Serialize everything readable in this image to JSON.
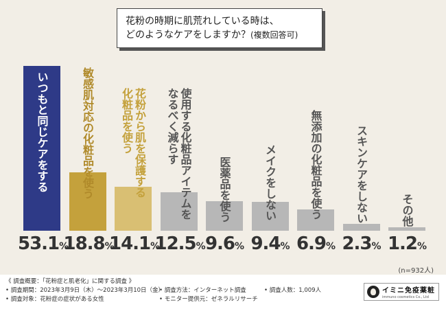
{
  "question": {
    "line1": "花粉の時期に肌荒れしている時は、",
    "line2": "どのようなケアをしますか？",
    "line2_small": "(複数回答可)"
  },
  "sample_note": "(n=932人)",
  "chart_data": {
    "type": "bar",
    "title": "花粉の時期に肌荒れしている時は、どのようなケアをしますか？(複数回答可)",
    "categories": [
      "いつもと同じケアをする",
      "敏感肌対応の化粧品を使う",
      "花粉から肌を保護する化粧品を使う",
      "使用する化粧品アイテムをなるべく減らす",
      "医薬品を使う",
      "メイクをしない",
      "無添加の化粧品を使う",
      "スキンケアをしない",
      "その他"
    ],
    "label_lines": [
      [
        "いつもと同じケアをする"
      ],
      [
        "敏感肌対応の化粧品を使う"
      ],
      [
        "花粉から肌を保護する",
        "化粧品を使う"
      ],
      [
        "使用する化粧品アイテムを",
        "なるべく減らす"
      ],
      [
        "医薬品を使う"
      ],
      [
        "メイクをしない"
      ],
      [
        "無添加の化粧品を使う"
      ],
      [
        "スキンケアをしない"
      ],
      [
        "その他"
      ]
    ],
    "values": [
      53.1,
      18.8,
      14.1,
      12.5,
      9.6,
      9.4,
      6.9,
      2.3,
      1.2
    ],
    "value_labels": [
      "53.1",
      "18.8",
      "14.1",
      "12.5",
      "9.6",
      "9.4",
      "6.9",
      "2.3",
      "1.2"
    ],
    "unit": "%",
    "colors": [
      "#2e3a87",
      "#c4a13c",
      "#d9bf73",
      "#b7b7b7",
      "#b7b7b7",
      "#b7b7b7",
      "#b7b7b7",
      "#b7b7b7",
      "#b7b7b7"
    ],
    "label_colors": [
      "#ffffff",
      "#b08a2a",
      "#c4a13c",
      "#555555",
      "#555555",
      "#555555",
      "#555555",
      "#555555",
      "#555555"
    ],
    "ylim": [
      0,
      53.1
    ]
  },
  "footer": {
    "header": "《 調査概要：「花粉症と肌老化」に関する調査 》",
    "period": "• 調査期間：2023年3月9日（木）～2023年3月10日（金）",
    "target": "• 調査対象：花粉症の症状がある女性",
    "method": "• 調査方法：インターネット調査",
    "provider": "• モニター提供元：ゼネラルリサーチ",
    "count": "• 調査人数：1,009人",
    "logo_name": "イミニ免疫薬粧",
    "logo_sub": "immuno cosmetics Co., Ltd"
  }
}
